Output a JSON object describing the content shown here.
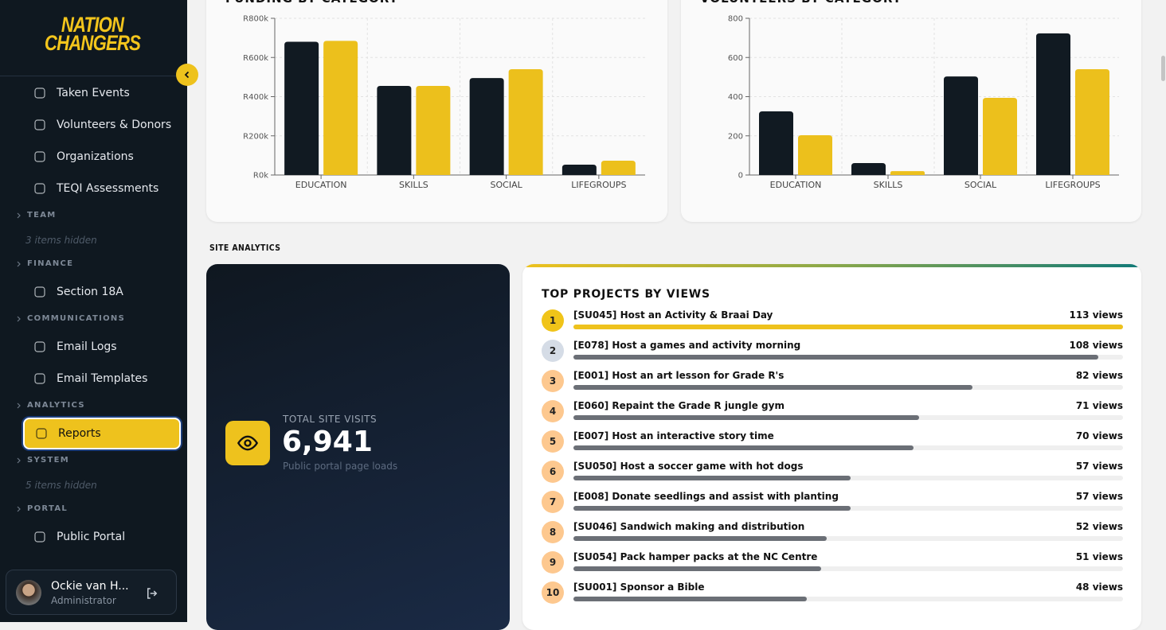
{
  "logo": [
    "NATION",
    "CHANGERS"
  ],
  "sidebar": {
    "nav": [
      {
        "type": "item",
        "label": "Taken Events"
      },
      {
        "type": "item",
        "label": "Volunteers & Donors"
      },
      {
        "type": "item",
        "label": "Organizations"
      },
      {
        "type": "item",
        "label": "TEQI Assessments"
      },
      {
        "type": "section",
        "label": "TEAM"
      },
      {
        "type": "hidden",
        "label": "3 items hidden"
      },
      {
        "type": "section",
        "label": "FINANCE"
      },
      {
        "type": "item",
        "label": "Section 18A"
      },
      {
        "type": "section",
        "label": "COMMUNICATIONS"
      },
      {
        "type": "item",
        "label": "Email Logs"
      },
      {
        "type": "item",
        "label": "Email Templates"
      },
      {
        "type": "section",
        "label": "ANALYTICS"
      },
      {
        "type": "item",
        "label": "Reports",
        "active": true
      },
      {
        "type": "section",
        "label": "SYSTEM"
      },
      {
        "type": "hidden",
        "label": "5 items hidden"
      },
      {
        "type": "section",
        "label": "PORTAL"
      },
      {
        "type": "item",
        "label": "Public Portal"
      }
    ],
    "user": {
      "name": "Ockie van H...",
      "role": "Administrator"
    }
  },
  "chart_data": [
    {
      "type": "bar",
      "title": "FUNDING BY CATEGORY",
      "categories": [
        "EDUCATION",
        "SKILLS",
        "SOCIAL",
        "LIFEGROUPS"
      ],
      "series": [
        {
          "color": "#111a22",
          "values": [
            680000,
            455000,
            495000,
            53000
          ]
        },
        {
          "color": "#ecc01c",
          "values": [
            685000,
            455000,
            540000,
            73000
          ]
        }
      ],
      "ylim": [
        0,
        800000
      ],
      "yticks": [
        {
          "value": 0,
          "label": "R0k"
        },
        {
          "value": 200000,
          "label": "R200k"
        },
        {
          "value": 400000,
          "label": "R400k"
        },
        {
          "value": 600000,
          "label": "R600k"
        },
        {
          "value": 800000,
          "label": "R800k"
        }
      ],
      "grid": true
    },
    {
      "type": "bar",
      "title": "VOLUNTEERS BY CATEGORY",
      "categories": [
        "EDUCATION",
        "SKILLS",
        "SOCIAL",
        "LIFEGROUPS"
      ],
      "series": [
        {
          "color": "#111a22",
          "values": [
            325,
            61,
            503,
            723
          ]
        },
        {
          "color": "#ecc01c",
          "values": [
            203,
            20,
            394,
            540
          ]
        }
      ],
      "ylim": [
        0,
        800
      ],
      "yticks": [
        0,
        200,
        400,
        600,
        800
      ],
      "grid": true
    }
  ],
  "site_analytics": {
    "heading": "SITE ANALYTICS",
    "visits": {
      "label": "TOTAL SITE VISITS",
      "value": "6,941",
      "caption": "Public portal page loads"
    },
    "top_projects": {
      "title": "TOP PROJECTS BY VIEWS",
      "items": [
        {
          "rank": 1,
          "name": "[SU045] Host an Activity & Braai Day",
          "views": 113,
          "views_label": "113 views"
        },
        {
          "rank": 2,
          "name": "[E078] Host a games and activity morning",
          "views": 108,
          "views_label": "108 views"
        },
        {
          "rank": 3,
          "name": "[E001] Host an art lesson for Grade R's",
          "views": 82,
          "views_label": "82 views"
        },
        {
          "rank": 4,
          "name": "[E060] Repaint the Grade R jungle gym",
          "views": 71,
          "views_label": "71 views"
        },
        {
          "rank": 5,
          "name": "[E007] Host an interactive story time",
          "views": 70,
          "views_label": "70 views"
        },
        {
          "rank": 6,
          "name": "[SU050] Host a soccer game with hot dogs",
          "views": 57,
          "views_label": "57 views"
        },
        {
          "rank": 7,
          "name": "[E008] Donate seedlings and assist with planting",
          "views": 57,
          "views_label": "57 views"
        },
        {
          "rank": 8,
          "name": "[SU046] Sandwich making and distribution",
          "views": 52,
          "views_label": "52 views"
        },
        {
          "rank": 9,
          "name": "[SU054] Pack hamper packs at the NC Centre",
          "views": 51,
          "views_label": "51 views"
        },
        {
          "rank": 10,
          "name": "[SU001] Sponsor a Bible",
          "views": 48,
          "views_label": "48 views"
        }
      ]
    }
  }
}
